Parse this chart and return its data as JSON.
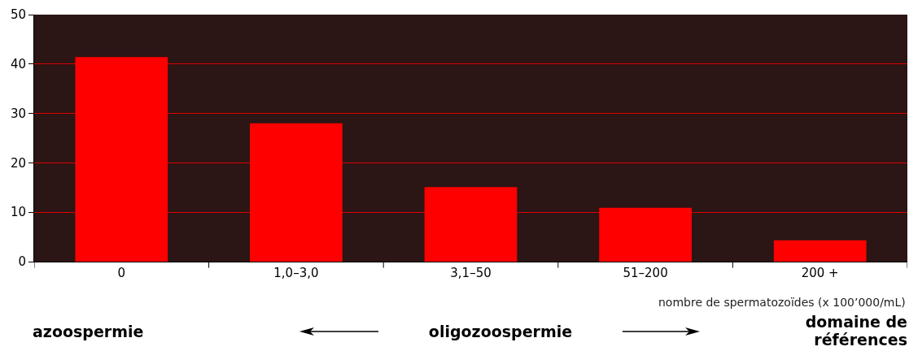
{
  "chart_data": {
    "type": "bar",
    "xlabel": "nombre de spermatozoïdes (x 100’000/mL)",
    "categories": [
      "0",
      "1,0–3,0",
      "3,1–50",
      "51–200",
      "200 +"
    ],
    "values": [
      41.4,
      28,
      15.1,
      10.9,
      4.3
    ],
    "color": "#ff0000",
    "ylim": [
      0,
      50
    ],
    "yticks": [
      0,
      10,
      20,
      30,
      40,
      50
    ],
    "grid": "y",
    "annotations": [
      "azoospermie",
      "oligozoospermie",
      "domaine de références"
    ]
  }
}
